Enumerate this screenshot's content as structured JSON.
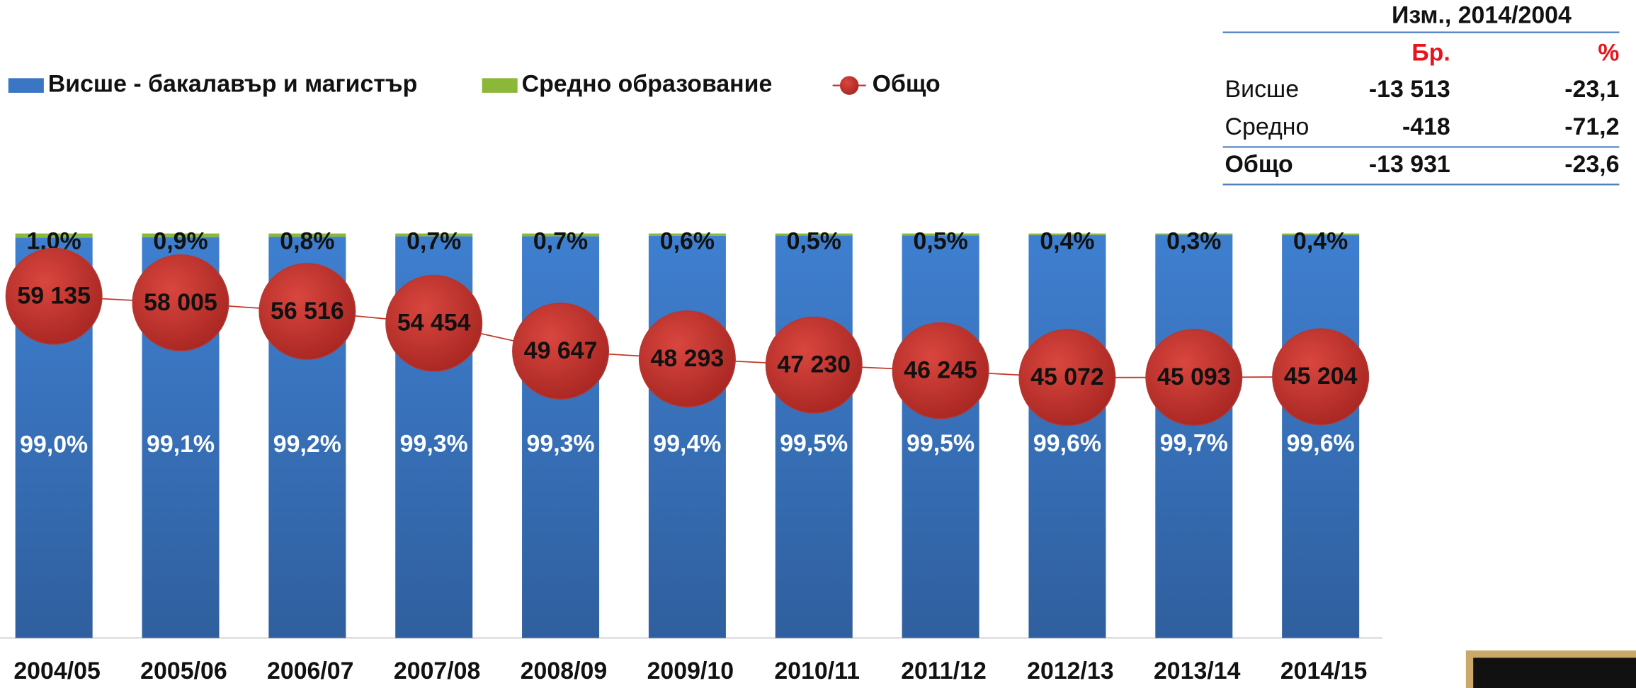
{
  "chart_data": {
    "type": "bar",
    "stacked": true,
    "categories": [
      "2004/05",
      "2005/06",
      "2006/07",
      "2007/08",
      "2008/09",
      "2009/10",
      "2010/11",
      "2011/12",
      "2012/13",
      "2013/14",
      "2014/15"
    ],
    "series": [
      {
        "name": "Висше - бакалавър и магистър",
        "color": "#3a76c4",
        "values": [
          99.0,
          99.1,
          99.2,
          99.3,
          99.3,
          99.4,
          99.5,
          99.5,
          99.6,
          99.7,
          99.6
        ],
        "value_labels": [
          "99,0%",
          "99,1%",
          "99,2%",
          "99,3%",
          "99,3%",
          "99,4%",
          "99,5%",
          "99,5%",
          "99,6%",
          "99,7%",
          "99,6%"
        ]
      },
      {
        "name": "Средно образование",
        "color": "#8cb83a",
        "values": [
          1.0,
          0.9,
          0.8,
          0.7,
          0.7,
          0.6,
          0.5,
          0.5,
          0.4,
          0.3,
          0.4
        ],
        "value_labels": [
          "1,0%",
          "0,9%",
          "0,8%",
          "0,7%",
          "0,7%",
          "0,6%",
          "0,5%",
          "0,5%",
          "0,4%",
          "0,3%",
          "0,4%"
        ]
      },
      {
        "name": "Общо",
        "type": "line",
        "axis": "y2",
        "color": "#c0392b",
        "values": [
          59135,
          58005,
          56516,
          54454,
          49647,
          48293,
          47230,
          46245,
          45072,
          45093,
          45204
        ],
        "value_labels": [
          "59 135",
          "58 005",
          "56 516",
          "54 454",
          "49 647",
          "48 293",
          "47 230",
          "46 245",
          "45 072",
          "45 093",
          "45 204"
        ]
      }
    ],
    "ylim": [
      0,
      100
    ],
    "y2lim": [
      0,
      70000
    ],
    "table": {
      "title": "Изм., 2014/2004",
      "columns": [
        "Бр.",
        "%"
      ],
      "rows": [
        {
          "label": "Висше",
          "values": [
            -13513,
            -23.1
          ],
          "value_labels": [
            "-13 513",
            "-23,1"
          ]
        },
        {
          "label": "Средно",
          "values": [
            -418,
            -71.2
          ],
          "value_labels": [
            "-418",
            "-71,2"
          ]
        },
        {
          "label": "Общо",
          "values": [
            -13931,
            -23.6
          ],
          "value_labels": [
            "-13 931",
            "-23,6"
          ]
        }
      ]
    }
  }
}
